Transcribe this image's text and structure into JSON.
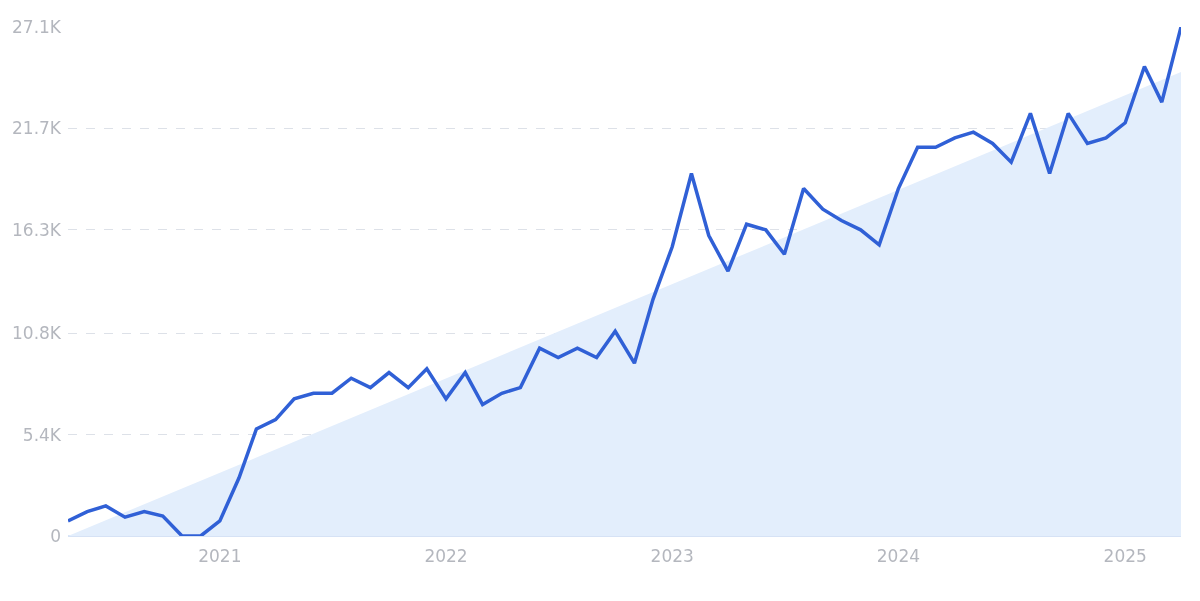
{
  "chart_data": {
    "type": "line",
    "x": [
      "2020-05",
      "2020-06",
      "2020-07",
      "2020-08",
      "2020-09",
      "2020-10",
      "2020-11",
      "2020-12",
      "2021-01",
      "2021-02",
      "2021-03",
      "2021-04",
      "2021-05",
      "2021-06",
      "2021-07",
      "2021-08",
      "2021-09",
      "2021-10",
      "2021-11",
      "2021-12",
      "2022-01",
      "2022-02",
      "2022-03",
      "2022-04",
      "2022-05",
      "2022-06",
      "2022-07",
      "2022-08",
      "2022-09",
      "2022-10",
      "2022-11",
      "2022-12",
      "2023-01",
      "2023-02",
      "2023-03",
      "2023-04",
      "2023-05",
      "2023-06",
      "2023-07",
      "2023-08",
      "2023-09",
      "2023-10",
      "2023-11",
      "2023-12",
      "2024-01",
      "2024-02",
      "2024-03",
      "2024-04",
      "2024-05",
      "2024-06",
      "2024-07",
      "2024-08",
      "2024-09",
      "2024-10",
      "2024-11",
      "2024-12",
      "2025-01",
      "2025-02",
      "2025-03",
      "2025-04"
    ],
    "series": [
      {
        "type": "area",
        "color": "#e3eefc",
        "x": [
          "2020-05",
          "2025-04"
        ],
        "values": [
          0,
          24.7
        ]
      },
      {
        "color": "#3060d6",
        "values": [
          0.8,
          1.3,
          1.6,
          1.0,
          1.3,
          1.06,
          0,
          0,
          0.8,
          3.1,
          5.7,
          6.2,
          7.3,
          7.6,
          7.6,
          8.4,
          7.9,
          8.7,
          7.9,
          8.9,
          7.3,
          8.7,
          7.0,
          7.6,
          7.9,
          10.0,
          9.5,
          10.0,
          9.5,
          10.9,
          9.2,
          12.6,
          15.4,
          19.3,
          16.0,
          14.1,
          16.6,
          16.3,
          15.0,
          18.5,
          17.4,
          16.8,
          16.3,
          15.5,
          18.5,
          20.7,
          20.7,
          21.2,
          21.5,
          20.9,
          19.9,
          22.5,
          19.3,
          22.5,
          20.9,
          21.2,
          22.0,
          25.0,
          23.1,
          27.1
        ]
      }
    ],
    "xlim": [
      "2020-05",
      "2025-04"
    ],
    "xticks": [
      {
        "value": "2021-01",
        "label": "2021"
      },
      {
        "value": "2022-01",
        "label": "2022"
      },
      {
        "value": "2023-01",
        "label": "2023"
      },
      {
        "value": "2024-01",
        "label": "2024"
      },
      {
        "value": "2025-01",
        "label": "2025"
      }
    ],
    "ylim": [
      0,
      27.1
    ],
    "yticks": [
      {
        "value": 0,
        "label": "0"
      },
      {
        "value": 5.4,
        "label": "5.4K"
      },
      {
        "value": 10.8,
        "label": "10.8K"
      },
      {
        "value": 16.3,
        "label": "16.3K"
      },
      {
        "value": 21.7,
        "label": "21.7K"
      },
      {
        "value": 27.1,
        "label": "27.1K"
      }
    ],
    "grid": "y",
    "marker": "none",
    "line_style": "solid"
  }
}
